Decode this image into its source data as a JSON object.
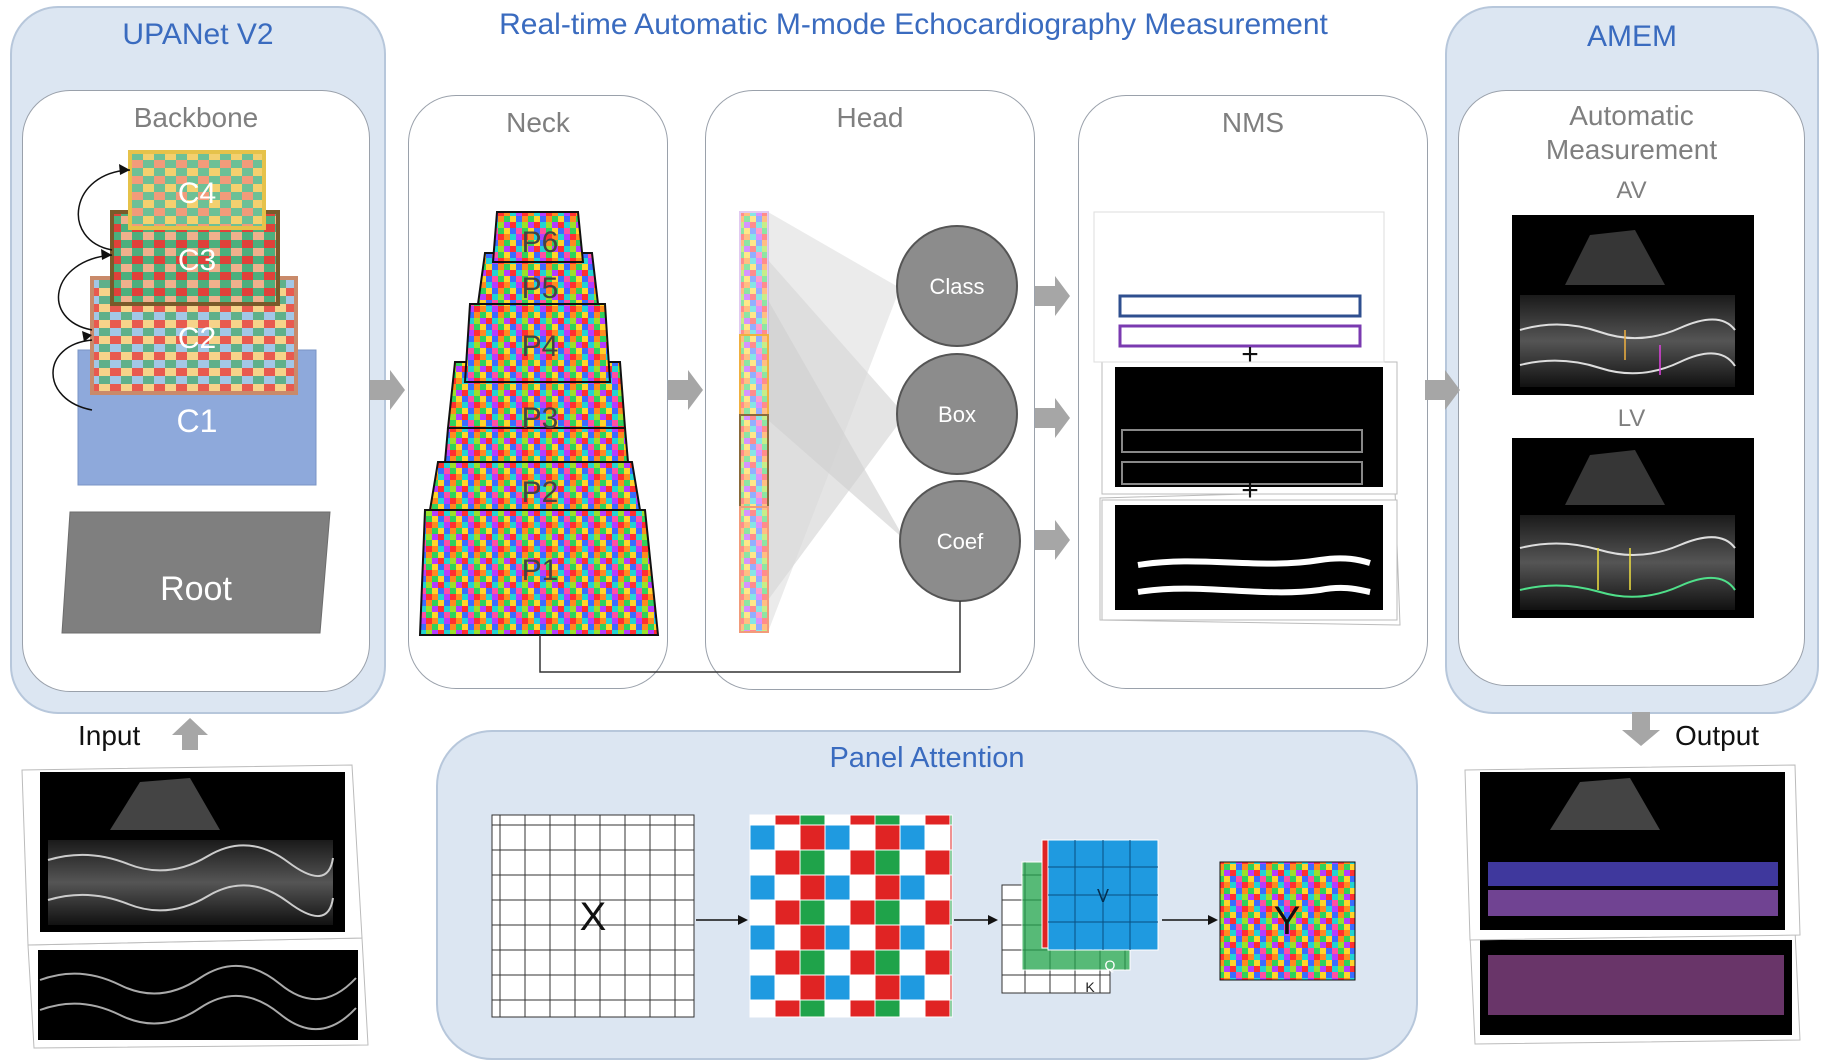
{
  "title": "Real-time Automatic M-mode Echocardiography Measurement",
  "upanet": {
    "title": "UPANet V2",
    "backbone": {
      "title": "Backbone",
      "layers": [
        "C4",
        "C3",
        "C2",
        "C1"
      ],
      "root": "Root"
    }
  },
  "neck": {
    "title": "Neck",
    "levels": [
      "P6",
      "P5",
      "P4",
      "P3",
      "P2",
      "P1"
    ]
  },
  "head": {
    "title": "Head",
    "outputs": [
      "Class",
      "Box",
      "Coef"
    ]
  },
  "nms": {
    "title": "NMS"
  },
  "amem": {
    "title": "AMEM",
    "measurement_title": "Automatic\nMeasurement",
    "av_label": "AV",
    "lv_label": "LV"
  },
  "input_label": "Input",
  "output_label": "Output",
  "panel_attention": {
    "title": "Panel Attention",
    "x_label": "X",
    "y_label": "Y",
    "k_letter": "K",
    "q_letter": "Q",
    "v_letter": "V"
  },
  "colors": {
    "accent_blue": "#3a6bbf",
    "panel_fill": "#dce6f2",
    "c1_fill": "#8ea9db",
    "root_fill": "#7f7f7f",
    "arrow_gray": "#a6a6a6",
    "head_circle": "#8c8c8c"
  }
}
